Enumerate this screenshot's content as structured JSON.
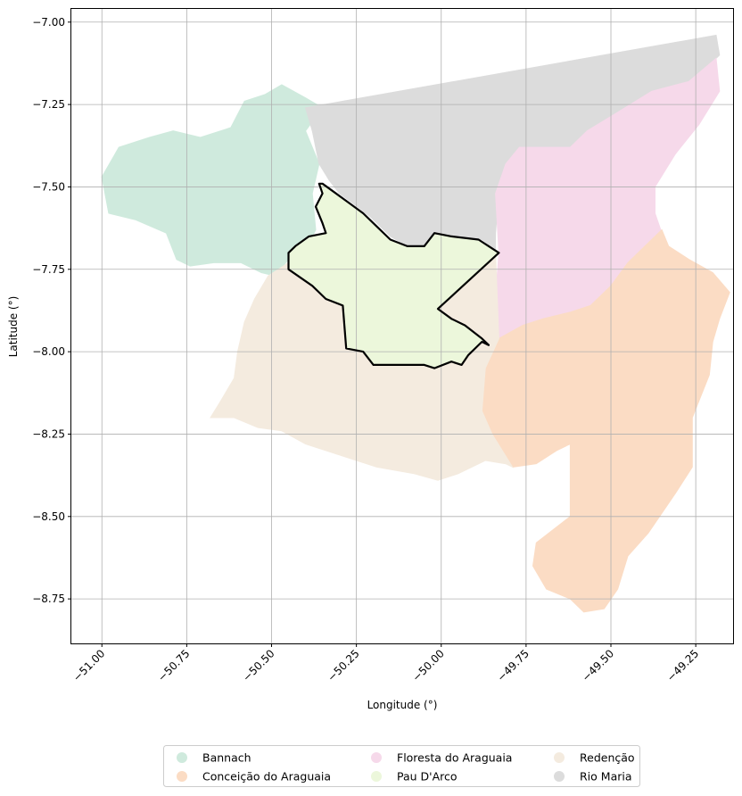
{
  "chart_data": {
    "type": "map",
    "xlabel": "Longitude (°)",
    "ylabel": "Latitude (°)",
    "xlim": [
      -51.09,
      -49.14
    ],
    "ylim": [
      -8.885,
      -6.96
    ],
    "xticks": [
      -51.0,
      -50.75,
      -50.5,
      -50.25,
      -50.0,
      -49.75,
      -49.5,
      -49.25
    ],
    "xtick_labels": [
      "−51.00",
      "−50.75",
      "−50.50",
      "−50.25",
      "−50.00",
      "−49.75",
      "−49.50",
      "−49.25"
    ],
    "yticks": [
      -7.0,
      -7.25,
      -7.5,
      -7.75,
      -8.0,
      -8.25,
      -8.5,
      -8.75
    ],
    "ytick_labels": [
      "−7.00",
      "−7.25",
      "−7.50",
      "−7.75",
      "−8.00",
      "−8.25",
      "−8.50",
      "−8.75"
    ],
    "grid": true,
    "legend_position": "bottom-center",
    "highlighted_region": "Pau D'Arco",
    "regions": [
      {
        "name": "Bannach",
        "color": "#cfeadd",
        "polygon": [
          [
            -50.35,
            -7.26
          ],
          [
            -50.4,
            -7.23
          ],
          [
            -50.47,
            -7.19
          ],
          [
            -50.52,
            -7.22
          ],
          [
            -50.58,
            -7.24
          ],
          [
            -50.62,
            -7.32
          ],
          [
            -50.71,
            -7.35
          ],
          [
            -50.79,
            -7.33
          ],
          [
            -50.86,
            -7.35
          ],
          [
            -50.95,
            -7.38
          ],
          [
            -51.0,
            -7.47
          ],
          [
            -50.98,
            -7.58
          ],
          [
            -50.9,
            -7.6
          ],
          [
            -50.81,
            -7.64
          ],
          [
            -50.78,
            -7.72
          ],
          [
            -50.74,
            -7.74
          ],
          [
            -50.67,
            -7.73
          ],
          [
            -50.59,
            -7.73
          ],
          [
            -50.53,
            -7.76
          ],
          [
            -50.49,
            -7.77
          ],
          [
            -50.45,
            -7.72
          ],
          [
            -50.4,
            -7.69
          ],
          [
            -50.37,
            -7.63
          ],
          [
            -50.38,
            -7.52
          ],
          [
            -50.36,
            -7.43
          ],
          [
            -50.4,
            -7.33
          ]
        ]
      },
      {
        "name": "Rio Maria",
        "color": "#dcdcdc",
        "polygon": [
          [
            -50.4,
            -7.26
          ],
          [
            -49.19,
            -7.04
          ],
          [
            -49.18,
            -7.1
          ],
          [
            -49.23,
            -7.15
          ],
          [
            -49.27,
            -7.18
          ],
          [
            -49.38,
            -7.21
          ],
          [
            -49.49,
            -7.28
          ],
          [
            -49.57,
            -7.33
          ],
          [
            -49.62,
            -7.38
          ],
          [
            -49.77,
            -7.38
          ],
          [
            -49.81,
            -7.43
          ],
          [
            -49.83,
            -7.52
          ],
          [
            -49.84,
            -7.64
          ],
          [
            -49.84,
            -7.69
          ],
          [
            -49.88,
            -7.66
          ],
          [
            -49.96,
            -7.66
          ],
          [
            -50.0,
            -7.64
          ],
          [
            -50.05,
            -7.68
          ],
          [
            -50.1,
            -7.68
          ],
          [
            -50.15,
            -7.65
          ],
          [
            -50.21,
            -7.59
          ],
          [
            -50.26,
            -7.55
          ],
          [
            -50.3,
            -7.52
          ],
          [
            -50.33,
            -7.48
          ],
          [
            -50.36,
            -7.43
          ],
          [
            -50.38,
            -7.33
          ]
        ]
      },
      {
        "name": "Floresta do Araguaia",
        "color": "#f6d9ea",
        "polygon": [
          [
            -49.19,
            -7.11
          ],
          [
            -49.18,
            -7.21
          ],
          [
            -49.24,
            -7.31
          ],
          [
            -49.31,
            -7.4
          ],
          [
            -49.37,
            -7.5
          ],
          [
            -49.37,
            -7.58
          ],
          [
            -49.35,
            -7.64
          ],
          [
            -49.4,
            -7.68
          ],
          [
            -49.45,
            -7.73
          ],
          [
            -49.5,
            -7.8
          ],
          [
            -49.56,
            -7.86
          ],
          [
            -49.62,
            -7.88
          ],
          [
            -49.7,
            -7.9
          ],
          [
            -49.76,
            -7.92
          ],
          [
            -49.85,
            -7.97
          ],
          [
            -49.83,
            -7.7
          ],
          [
            -49.84,
            -7.52
          ],
          [
            -49.81,
            -7.43
          ],
          [
            -49.77,
            -7.38
          ],
          [
            -49.62,
            -7.38
          ],
          [
            -49.57,
            -7.33
          ],
          [
            -49.49,
            -7.28
          ],
          [
            -49.38,
            -7.21
          ],
          [
            -49.27,
            -7.18
          ]
        ]
      },
      {
        "name": "Conceição do Araguaia",
        "color": "#fbdcc4",
        "polygon": [
          [
            -49.35,
            -7.63
          ],
          [
            -49.33,
            -7.68
          ],
          [
            -49.27,
            -7.72
          ],
          [
            -49.2,
            -7.76
          ],
          [
            -49.15,
            -7.82
          ],
          [
            -49.18,
            -7.9
          ],
          [
            -49.2,
            -7.97
          ],
          [
            -49.21,
            -8.07
          ],
          [
            -49.26,
            -8.2
          ],
          [
            -49.26,
            -8.35
          ],
          [
            -49.31,
            -8.43
          ],
          [
            -49.39,
            -8.55
          ],
          [
            -49.45,
            -8.62
          ],
          [
            -49.48,
            -8.72
          ],
          [
            -49.52,
            -8.78
          ],
          [
            -49.58,
            -8.79
          ],
          [
            -49.62,
            -8.75
          ],
          [
            -49.69,
            -8.72
          ],
          [
            -49.73,
            -8.65
          ],
          [
            -49.72,
            -8.58
          ],
          [
            -49.62,
            -8.5
          ],
          [
            -49.62,
            -8.28
          ],
          [
            -49.66,
            -8.3
          ],
          [
            -49.72,
            -8.34
          ],
          [
            -49.79,
            -8.35
          ],
          [
            -49.85,
            -8.25
          ],
          [
            -49.88,
            -8.18
          ],
          [
            -49.87,
            -8.05
          ],
          [
            -49.83,
            -7.96
          ],
          [
            -49.76,
            -7.92
          ],
          [
            -49.7,
            -7.9
          ],
          [
            -49.62,
            -7.88
          ],
          [
            -49.56,
            -7.86
          ],
          [
            -49.5,
            -7.8
          ],
          [
            -49.45,
            -7.73
          ],
          [
            -49.4,
            -7.68
          ]
        ]
      },
      {
        "name": "Redenção",
        "color": "#f4ebdf",
        "polygon": [
          [
            -50.51,
            -7.77
          ],
          [
            -50.55,
            -7.84
          ],
          [
            -50.58,
            -7.91
          ],
          [
            -50.6,
            -8.0
          ],
          [
            -50.61,
            -8.08
          ],
          [
            -50.65,
            -8.15
          ],
          [
            -50.68,
            -8.2
          ],
          [
            -50.61,
            -8.2
          ],
          [
            -50.54,
            -8.23
          ],
          [
            -50.47,
            -8.24
          ],
          [
            -50.4,
            -8.28
          ],
          [
            -50.31,
            -8.31
          ],
          [
            -50.19,
            -8.35
          ],
          [
            -50.08,
            -8.37
          ],
          [
            -50.01,
            -8.39
          ],
          [
            -49.95,
            -8.37
          ],
          [
            -49.87,
            -8.33
          ],
          [
            -49.81,
            -8.34
          ],
          [
            -49.79,
            -8.35
          ],
          [
            -49.85,
            -8.25
          ],
          [
            -49.88,
            -8.18
          ],
          [
            -49.87,
            -8.05
          ],
          [
            -49.83,
            -7.96
          ],
          [
            -49.84,
            -7.7
          ],
          [
            -49.9,
            -7.74
          ],
          [
            -50.0,
            -7.86
          ],
          [
            -50.05,
            -7.86
          ],
          [
            -50.15,
            -7.85
          ],
          [
            -50.25,
            -7.87
          ],
          [
            -50.3,
            -7.86
          ],
          [
            -50.39,
            -7.79
          ],
          [
            -50.45,
            -7.73
          ]
        ]
      },
      {
        "name": "Pau D'Arco",
        "color": "#ecf7db",
        "polygon": [
          [
            -50.36,
            -7.49
          ],
          [
            -50.35,
            -7.52
          ],
          [
            -50.37,
            -7.56
          ],
          [
            -50.35,
            -7.61
          ],
          [
            -50.34,
            -7.64
          ],
          [
            -50.39,
            -7.65
          ],
          [
            -50.43,
            -7.68
          ],
          [
            -50.45,
            -7.7
          ],
          [
            -50.45,
            -7.75
          ],
          [
            -50.38,
            -7.8
          ],
          [
            -50.34,
            -7.84
          ],
          [
            -50.29,
            -7.86
          ],
          [
            -50.28,
            -7.99
          ],
          [
            -50.23,
            -8.0
          ],
          [
            -50.2,
            -8.04
          ],
          [
            -50.13,
            -8.04
          ],
          [
            -50.08,
            -8.04
          ],
          [
            -50.05,
            -8.04
          ],
          [
            -50.02,
            -8.05
          ],
          [
            -49.97,
            -8.03
          ],
          [
            -49.94,
            -8.04
          ],
          [
            -49.92,
            -8.01
          ],
          [
            -49.88,
            -7.97
          ],
          [
            -49.86,
            -7.98
          ],
          [
            -49.88,
            -7.96
          ],
          [
            -49.93,
            -7.92
          ],
          [
            -49.97,
            -7.9
          ],
          [
            -50.01,
            -7.87
          ],
          [
            -49.83,
            -7.7
          ],
          [
            -49.86,
            -7.68
          ],
          [
            -49.89,
            -7.66
          ],
          [
            -49.97,
            -7.65
          ],
          [
            -50.02,
            -7.64
          ],
          [
            -50.05,
            -7.68
          ],
          [
            -50.1,
            -7.68
          ],
          [
            -50.15,
            -7.66
          ],
          [
            -50.19,
            -7.62
          ],
          [
            -50.23,
            -7.58
          ],
          [
            -50.27,
            -7.55
          ],
          [
            -50.31,
            -7.52
          ],
          [
            -50.35,
            -7.49
          ]
        ]
      }
    ],
    "legend": [
      {
        "label": "Bannach",
        "color": "#cfeadd"
      },
      {
        "label": "Conceição do Araguaia",
        "color": "#fbdcc4"
      },
      {
        "label": "Floresta do Araguaia",
        "color": "#f6d9ea"
      },
      {
        "label": "Pau D'Arco",
        "color": "#ecf7db"
      },
      {
        "label": "Redenção",
        "color": "#f4ebdf"
      },
      {
        "label": "Rio Maria",
        "color": "#dcdcdc"
      }
    ]
  }
}
